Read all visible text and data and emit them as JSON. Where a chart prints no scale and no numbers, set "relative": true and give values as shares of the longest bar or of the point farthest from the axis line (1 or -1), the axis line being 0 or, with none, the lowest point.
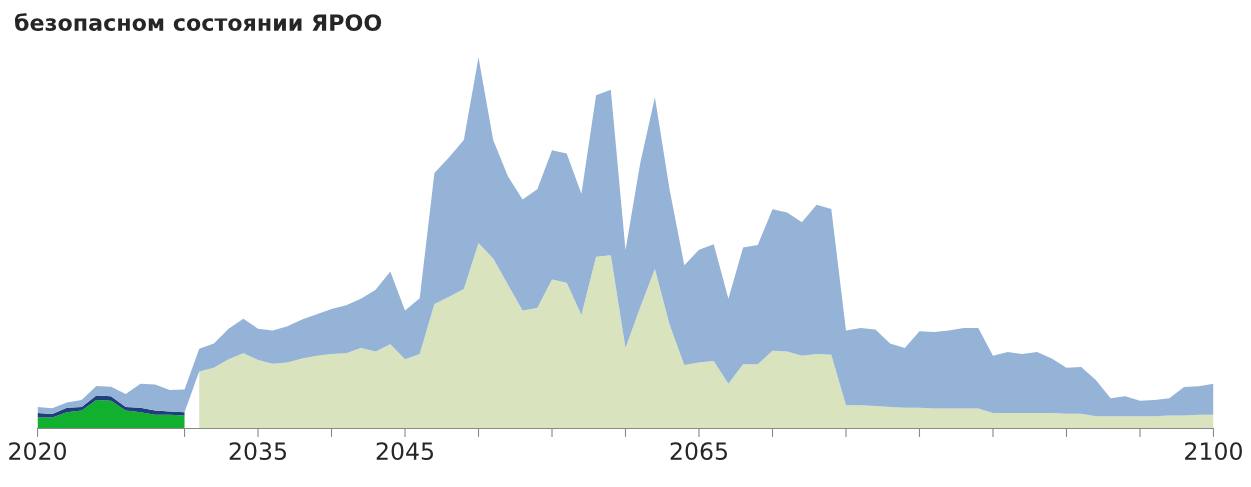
{
  "chart_data": {
    "type": "area",
    "stacked": true,
    "relative": true,
    "title": "безопасном состоянии ЯРОО",
    "x": [
      2020,
      2021,
      2022,
      2023,
      2024,
      2025,
      2026,
      2027,
      2028,
      2029,
      2030,
      2031,
      2032,
      2033,
      2034,
      2035,
      2036,
      2037,
      2038,
      2039,
      2040,
      2041,
      2042,
      2043,
      2044,
      2045,
      2046,
      2047,
      2048,
      2049,
      2050,
      2051,
      2052,
      2053,
      2054,
      2055,
      2056,
      2057,
      2058,
      2059,
      2060,
      2061,
      2062,
      2063,
      2064,
      2065,
      2066,
      2067,
      2068,
      2069,
      2070,
      2071,
      2072,
      2073,
      2074,
      2075,
      2076,
      2077,
      2078,
      2079,
      2080,
      2081,
      2082,
      2083,
      2084,
      2085,
      2086,
      2087,
      2088,
      2089,
      2090,
      2091,
      2092,
      2093,
      2094,
      2095,
      2096,
      2097,
      2098,
      2099,
      2100
    ],
    "xlim": [
      2020,
      2100
    ],
    "xticks": [
      {
        "value": 2020,
        "label": "2020"
      },
      {
        "value": 2030,
        "label": null
      },
      {
        "value": 2035,
        "label": "2035"
      },
      {
        "value": 2040,
        "label": null
      },
      {
        "value": 2045,
        "label": "2045"
      },
      {
        "value": 2050,
        "label": null
      },
      {
        "value": 2055,
        "label": null
      },
      {
        "value": 2060,
        "label": null
      },
      {
        "value": 2065,
        "label": "2065"
      },
      {
        "value": 2070,
        "label": null
      },
      {
        "value": 2075,
        "label": null
      },
      {
        "value": 2080,
        "label": null
      },
      {
        "value": 2085,
        "label": null
      },
      {
        "value": 2090,
        "label": null
      },
      {
        "value": 2095,
        "label": null
      },
      {
        "value": 2100,
        "label": "2100"
      }
    ],
    "tick_labels": "x",
    "grid": false,
    "series": [
      {
        "color": "#12b02f",
        "values": [
          0.03,
          0.03,
          0.044,
          0.049,
          0.077,
          0.075,
          0.049,
          0.044,
          0.037,
          0.037,
          0.035,
          null,
          null,
          null,
          null,
          null,
          null,
          null,
          null,
          null,
          null,
          null,
          null,
          null,
          null,
          null,
          null,
          null,
          null,
          null,
          null,
          null,
          null,
          null,
          null,
          null,
          null,
          null,
          null,
          null,
          null,
          null,
          null,
          null,
          null,
          null,
          null,
          null,
          null,
          null,
          null,
          null,
          null,
          null,
          null,
          null,
          null,
          null,
          null,
          null,
          null,
          null,
          null,
          null,
          null,
          null,
          null,
          null,
          null,
          null,
          null,
          null,
          null,
          null,
          null,
          null,
          null,
          null,
          null,
          null,
          null
        ]
      },
      {
        "color": "#d9e4bf",
        "values": [
          null,
          null,
          null,
          null,
          null,
          null,
          null,
          null,
          null,
          null,
          null,
          0.154,
          0.164,
          0.187,
          0.203,
          0.185,
          0.175,
          0.178,
          0.189,
          0.196,
          0.201,
          0.203,
          0.217,
          0.208,
          0.227,
          0.187,
          0.201,
          0.336,
          0.355,
          0.376,
          0.5,
          0.458,
          0.388,
          0.318,
          0.325,
          0.402,
          0.393,
          0.306,
          0.463,
          0.467,
          0.217,
          0.327,
          0.43,
          0.28,
          0.171,
          0.178,
          0.182,
          0.121,
          0.173,
          0.173,
          0.21,
          0.208,
          0.196,
          0.201,
          0.199,
          0.063,
          0.063,
          0.061,
          0.058,
          0.056,
          0.056,
          0.054,
          0.054,
          0.054,
          0.054,
          0.042,
          0.042,
          0.042,
          0.042,
          0.042,
          0.04,
          0.04,
          0.033,
          0.033,
          0.033,
          0.033,
          0.033,
          0.035,
          0.035,
          0.037,
          0.037
        ]
      },
      {
        "color": "#1f3f7a",
        "values": [
          0.012,
          0.009,
          0.012,
          0.009,
          0.012,
          0.012,
          0.009,
          0.012,
          0.012,
          0.009,
          0.009,
          null,
          null,
          null,
          null,
          null,
          null,
          null,
          null,
          null,
          null,
          null,
          null,
          null,
          null,
          null,
          null,
          null,
          null,
          null,
          null,
          null,
          null,
          null,
          null,
          null,
          null,
          null,
          null,
          null,
          null,
          null,
          null,
          null,
          null,
          null,
          null,
          null,
          null,
          null,
          null,
          null,
          null,
          null,
          null,
          null,
          null,
          null,
          null,
          null,
          null,
          null,
          null,
          null,
          null,
          null,
          null,
          null,
          null,
          null,
          null,
          null,
          null,
          null,
          null,
          null,
          null,
          null,
          null,
          null,
          null
        ]
      },
      {
        "color": "#95b3d7",
        "values": [
          0.016,
          0.016,
          0.014,
          0.019,
          0.026,
          0.026,
          0.035,
          0.065,
          0.07,
          0.058,
          0.061,
          0.061,
          0.065,
          0.082,
          0.093,
          0.084,
          0.089,
          0.098,
          0.105,
          0.112,
          0.121,
          0.129,
          0.133,
          0.166,
          0.196,
          0.131,
          0.15,
          0.353,
          0.376,
          0.402,
          0.5,
          0.32,
          0.292,
          0.299,
          0.32,
          0.348,
          0.348,
          0.327,
          0.435,
          0.446,
          0.264,
          0.388,
          0.463,
          0.364,
          0.269,
          0.304,
          0.315,
          0.229,
          0.315,
          0.322,
          0.381,
          0.374,
          0.36,
          0.402,
          0.393,
          0.201,
          0.208,
          0.206,
          0.171,
          0.161,
          0.206,
          0.206,
          0.21,
          0.217,
          0.217,
          0.154,
          0.164,
          0.159,
          0.164,
          0.147,
          0.124,
          0.126,
          0.098,
          0.049,
          0.054,
          0.042,
          0.044,
          0.047,
          0.077,
          0.077,
          0.084
        ]
      }
    ]
  }
}
